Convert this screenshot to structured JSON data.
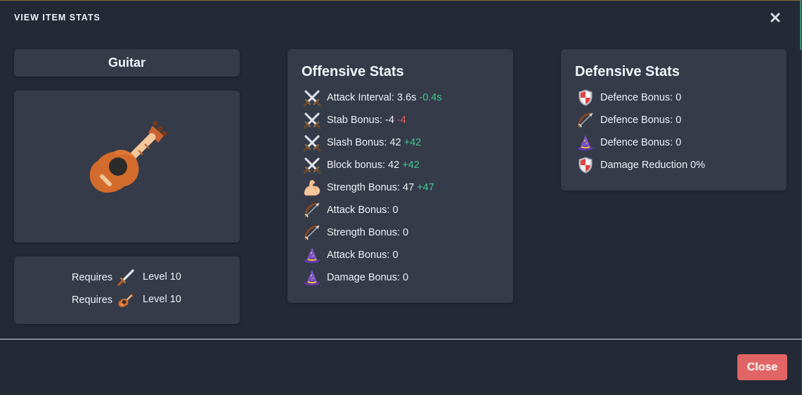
{
  "modal": {
    "title": "VIEW ITEM STATS",
    "close_icon": "close-icon",
    "close_button_label": "Close",
    "colors": {
      "background": "#242936",
      "card": "#353b49",
      "positive": "#3fc78d",
      "negative": "#e45b5b",
      "close_button": "#e26565"
    }
  },
  "item": {
    "name": "Guitar",
    "image_icon": "guitar-icon",
    "requirements": [
      {
        "label": "Requires",
        "icon": "sword-icon",
        "level": "Level 10"
      },
      {
        "label": "Requires",
        "icon": "guitar-icon",
        "level": "Level 10"
      }
    ]
  },
  "offensive": {
    "title": "Offensive Stats",
    "stats": [
      {
        "icon": "crossed-swords-icon",
        "text": "Attack Interval: 3.6s",
        "delta": "-0.4s",
        "delta_type": "pos"
      },
      {
        "icon": "crossed-swords-icon",
        "text": "Stab Bonus: -4",
        "delta": "-4",
        "delta_type": "neg"
      },
      {
        "icon": "crossed-swords-icon",
        "text": "Slash Bonus: 42",
        "delta": "+42",
        "delta_type": "pos"
      },
      {
        "icon": "crossed-swords-icon",
        "text": "Block bonus: 42",
        "delta": "+42",
        "delta_type": "pos"
      },
      {
        "icon": "flexed-bicep-icon",
        "text": "Strength Bonus: 47",
        "delta": "+47",
        "delta_type": "pos"
      },
      {
        "icon": "bow-and-arrow-icon",
        "text": "Attack Bonus: 0",
        "delta": "",
        "delta_type": ""
      },
      {
        "icon": "bow-and-arrow-icon",
        "text": "Strength Bonus: 0",
        "delta": "",
        "delta_type": ""
      },
      {
        "icon": "wizard-hat-icon",
        "text": "Attack Bonus: 0",
        "delta": "",
        "delta_type": ""
      },
      {
        "icon": "wizard-hat-icon",
        "text": "Damage Bonus: 0",
        "delta": "",
        "delta_type": ""
      }
    ]
  },
  "defensive": {
    "title": "Defensive Stats",
    "stats": [
      {
        "icon": "shield-icon",
        "text": "Defence Bonus: 0"
      },
      {
        "icon": "bow-and-arrow-icon",
        "text": "Defence Bonus: 0"
      },
      {
        "icon": "wizard-hat-icon",
        "text": "Defence Bonus: 0"
      },
      {
        "icon": "shield-icon",
        "text": "Damage Reduction 0%"
      }
    ]
  }
}
